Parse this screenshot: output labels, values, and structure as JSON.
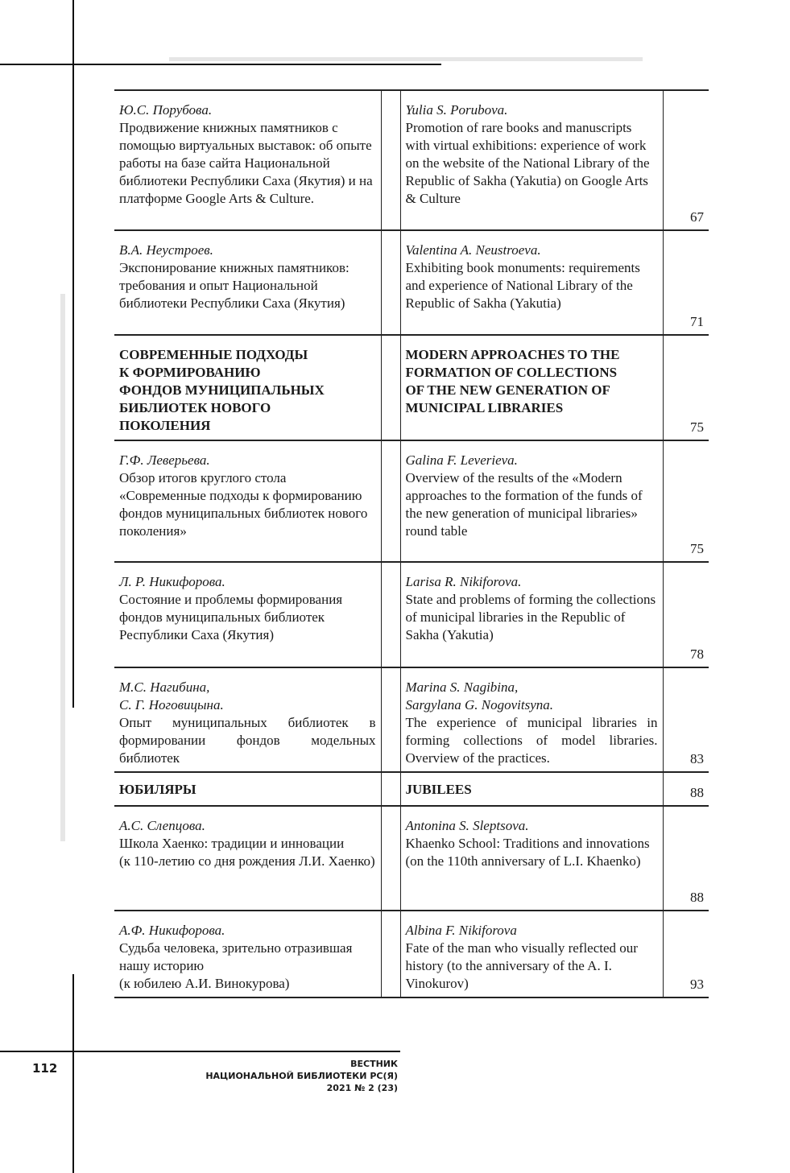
{
  "rows": [
    {
      "ru_author": "Ю.С. Порубова.",
      "ru_title": "Продвижение книжных памятников с помощью виртуальных выставок: об опыте работы  на базе сайта Национальной библиотеки Республики Саха (Якутия)  и на платформе Google Arts & Culture.",
      "en_author": "Yulia S. Porubova.",
      "en_title": "Promotion of rare books and manuscripts with virtual exhibitions: experience of work on the website of the National Library of the Republic of Sakha (Yakutia) on Google Arts & Culture",
      "page": "67"
    },
    {
      "ru_author": "В.А. Неустроев.",
      "ru_title": "Экспонирование книжных памятников: требования и опыт Национальной библиотеки Республики Саха (Якутия)",
      "en_author": "Valentina A. Neustroeva.",
      "en_title": "Exhibiting book monuments: requirements  and experience of National Library  of the Republic of Sakha (Yakutia)",
      "page": "71"
    },
    {
      "section": true,
      "ru_title": "СОВРЕМЕННЫЕ ПОДХОДЫ\nК ФОРМИРОВАНИЮ\nФОНДОВ МУНИЦИПАЛЬНЫХ\nБИБЛИОТЕК  НОВОГО\nПОКОЛЕНИЯ",
      "en_title": "MODERN APPROACHES TO THE\nFORMATION OF COLLECTIONS\nOF THE NEW GENERATION OF\nMUNICIPAL LIBRARIES",
      "page": "75"
    },
    {
      "ru_author": "Г.Ф. Леверьева.",
      "ru_title": "Обзор итогов круглого стола «Современные подходы к формированию фондов муниципальных библиотек нового поколения»",
      "en_author": "Galina F. Leverieva.",
      "en_title": "Overview of the results of the «Modern approaches to the formation of the funds of the new generation of municipal libraries» round table",
      "page": "75"
    },
    {
      "ru_author": "Л. Р. Никифорова.",
      "ru_title": "Состояние и проблемы формирования  фондов муниципальных библиотек Республики Саха (Якутия)",
      "en_author": "Larisa R. Nikiforova.",
      "en_title": "State and problems of forming the collections  of municipal libraries  in the Republic of Sakha (Yakutia)",
      "page": "78"
    },
    {
      "ru_author": "М.С. Нагибина,\nС. Г. Ноговицына.",
      "ru_title": "Опыт муниципальных библиотек  в формировании фондов модельных библиотек",
      "en_author": "Marina S. Nagibina,\nSargylana G. Nogovitsyna.",
      "en_title": "The experience of municipal libraries in forming collections of model libraries. Overview of the practices.",
      "page": "83",
      "justify": true
    },
    {
      "section": true,
      "ru_title": "ЮБИЛЯРЫ",
      "en_title": "JUBILEES",
      "page": "88"
    },
    {
      "ru_author": "А.С. Слепцова.",
      "ru_title": "Школа Хаенко: традиции и инновации\n(к 110-летию со дня рождения Л.И. Хаенко)",
      "en_author": "Antonina S. Sleptsova.",
      "en_title": "Khaenko School: Traditions and innovations\n(on the 110th anniversary of L.I. Khaenko)",
      "page": "88"
    },
    {
      "ru_author": "А.Ф. Никифорова.",
      "ru_title": "Судьба человека, зрительно отразившая нашу историю\n(к юбилею А.И. Винокурова)",
      "en_author": "Albina F. Nikiforova",
      "en_title": "Fate of the man who visually reflected our history  (to the anniversary of the A. I. Vinokurov)",
      "page": "93"
    }
  ],
  "footer": {
    "page_number": "112",
    "journal_line1": "ВЕСТНИК",
    "journal_line2": "НАЦИОНАЛЬНОЙ БИБЛИОТЕКИ РС(Я)",
    "journal_line3": "2021 № 2 (23)"
  }
}
